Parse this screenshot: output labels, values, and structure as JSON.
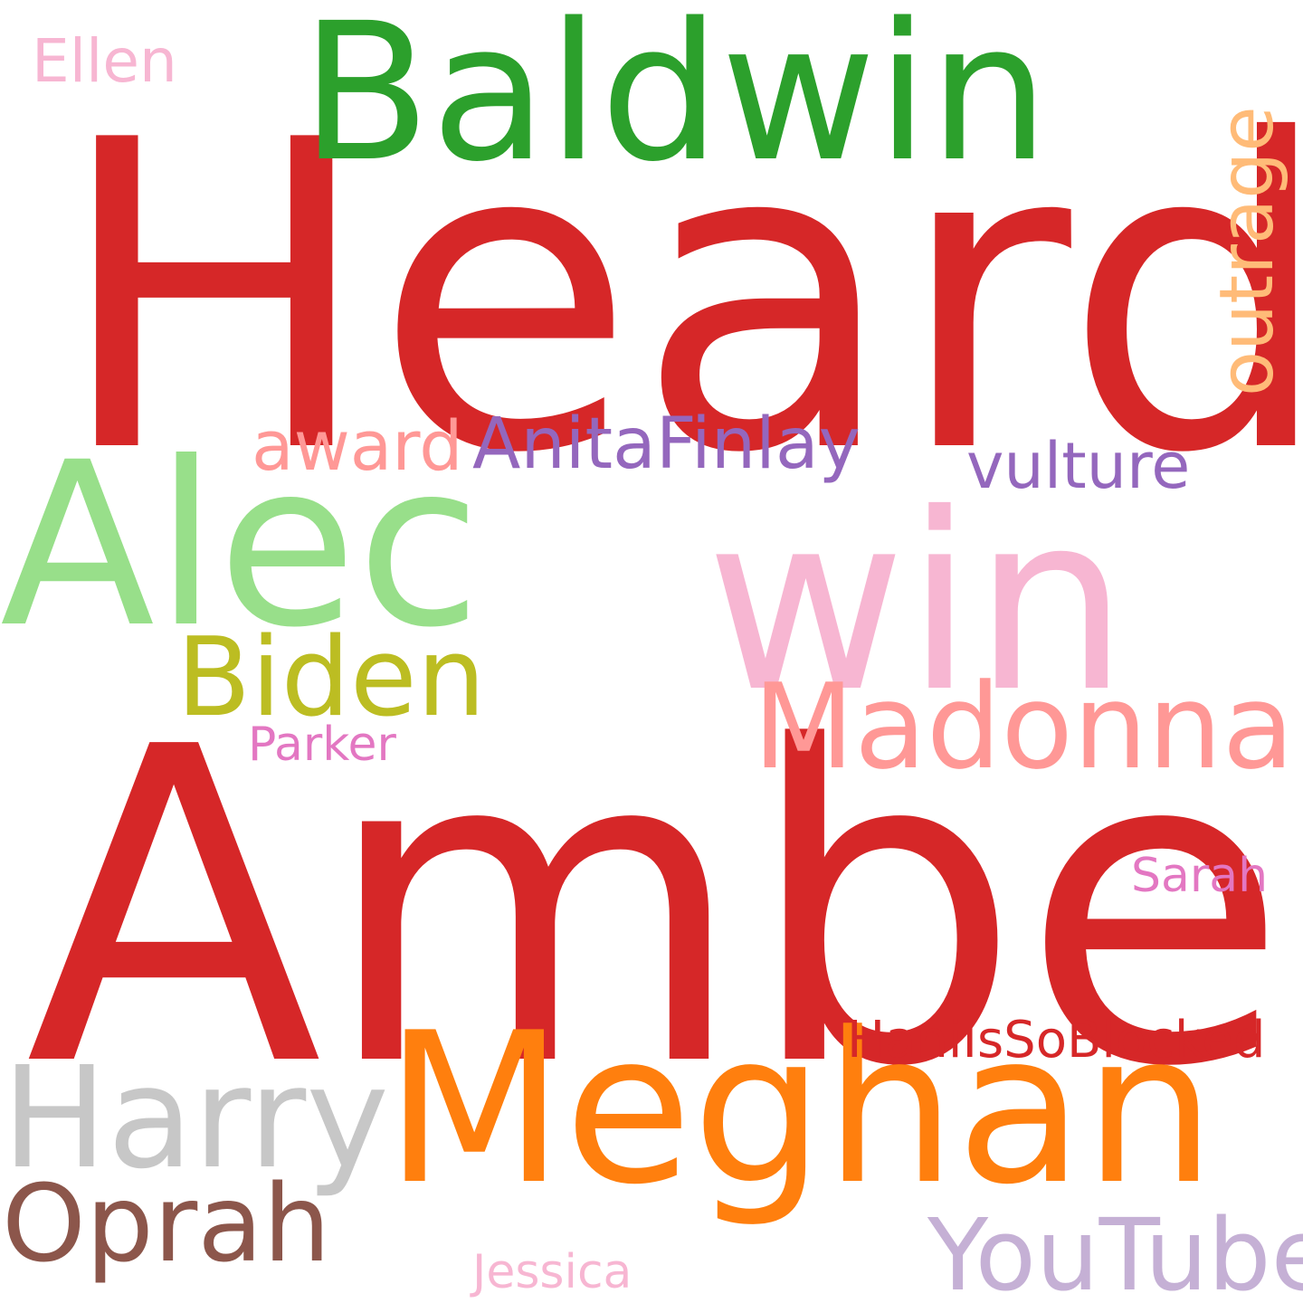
{
  "words": [
    {
      "key": "heard",
      "text": "Heard",
      "color": "#d62728"
    },
    {
      "key": "amber",
      "text": "Amber",
      "color": "#d62728"
    },
    {
      "key": "baldwin",
      "text": "Baldwin",
      "color": "#2ca02c"
    },
    {
      "key": "alec",
      "text": "Alec",
      "color": "#98df8a"
    },
    {
      "key": "win",
      "text": "win",
      "color": "#f7b6d2"
    },
    {
      "key": "meghan",
      "text": "Meghan",
      "color": "#ff7f0e"
    },
    {
      "key": "harry",
      "text": "Harry",
      "color": "#c7c7c7"
    },
    {
      "key": "oprah",
      "text": "Oprah",
      "color": "#8c564b"
    },
    {
      "key": "biden",
      "text": "Biden",
      "color": "#bcbd22"
    },
    {
      "key": "madonna",
      "text": "Madonna",
      "color": "#ff9896"
    },
    {
      "key": "youtube",
      "text": "YouTube",
      "color": "#c5b0d5"
    },
    {
      "key": "anita",
      "text": "AnitaFinlay",
      "color": "#9467bd"
    },
    {
      "key": "award",
      "text": "award",
      "color": "#ff9896"
    },
    {
      "key": "vulture",
      "text": "vulture",
      "color": "#9467bd"
    },
    {
      "key": "hani",
      "text": "HaniIsSoBlocked",
      "color": "#d62728"
    },
    {
      "key": "sarah",
      "text": "Sarah",
      "color": "#e377c2"
    },
    {
      "key": "parker",
      "text": "Parker",
      "color": "#e377c2"
    },
    {
      "key": "jessica",
      "text": "Jessica",
      "color": "#f7b6d2"
    },
    {
      "key": "ellen",
      "text": "Ellen",
      "color": "#f7b6d2"
    },
    {
      "key": "outrage",
      "text": "outrage",
      "color": "#ffbb78"
    }
  ]
}
